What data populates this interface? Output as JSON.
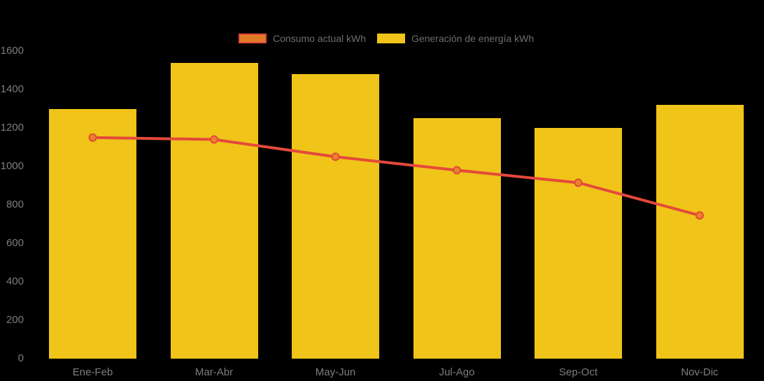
{
  "background_color": "#000000",
  "legend": {
    "items": [
      {
        "label": "Consumo actual kWh",
        "series_type": "line",
        "swatch_fill": "#E07B28",
        "swatch_border": "#E4493A"
      },
      {
        "label": "Generación de energía kWh",
        "series_type": "bar",
        "swatch_fill": "#F0C419",
        "swatch_border": "#F0C419"
      }
    ]
  },
  "chart_data": {
    "type": "bar",
    "subtype": "bar-and-line-combo",
    "categories": [
      "Ene-Feb",
      "Mar-Abr",
      "May-Jun",
      "Jul-Ago",
      "Sep-Oct",
      "Nov-Dic"
    ],
    "series": [
      {
        "name": "Generación de energía kWh",
        "type": "bar",
        "color": "#F0C419",
        "values": [
          1300,
          1540,
          1480,
          1250,
          1200,
          1320
        ]
      },
      {
        "name": "Consumo actual kWh",
        "type": "line",
        "color": "#E4493A",
        "marker_fill": "#E8822D",
        "marker_stroke": "#E4493A",
        "values": [
          1150,
          1140,
          1050,
          980,
          915,
          745
        ]
      }
    ],
    "title": "",
    "xlabel": "",
    "ylabel": "",
    "ylim": [
      0,
      1600
    ],
    "ytick_step": 200,
    "yticks": [
      0,
      200,
      400,
      600,
      800,
      1000,
      1200,
      1400,
      1600
    ],
    "grid": false,
    "legend_position": "top",
    "axis_text_color": "#7D7D7D"
  }
}
